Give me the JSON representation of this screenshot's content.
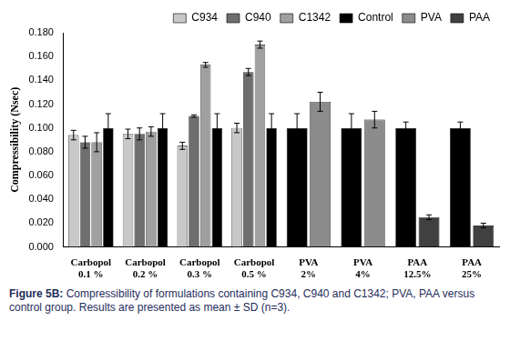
{
  "chart_data": {
    "type": "bar",
    "caption": "Figure 5B: Compressibility of formulations containing C934, C940 and C1342; PVA, PAA versus control group. Results are presented as mean ± SD (n=3).",
    "y_label": "Compressibility (Nsec)",
    "categories": [
      "Carbopol 0.1 %",
      "Carbopol 0.2 %",
      "Carbopol 0.3 %",
      "Carbopol 0.5 %",
      "PVA 2%",
      "PVA 4%",
      "PAA 12.5%",
      "PAA 25%"
    ],
    "series": [
      {
        "name": "C934",
        "color": "#c8c8c8",
        "values": [
          0.094,
          0.095,
          0.085,
          0.1,
          null,
          null,
          null,
          null
        ],
        "errors": [
          0.004,
          0.004,
          0.003,
          0.004,
          null,
          null,
          null,
          null
        ]
      },
      {
        "name": "C940",
        "color": "#6e6e6e",
        "values": [
          0.088,
          0.095,
          0.11,
          0.147,
          null,
          null,
          null,
          null
        ],
        "errors": [
          0.005,
          0.005,
          0.001,
          0.003,
          null,
          null,
          null,
          null
        ]
      },
      {
        "name": "C1342",
        "color": "#a0a0a0",
        "values": [
          0.088,
          0.097,
          0.153,
          0.17,
          null,
          null,
          null,
          null
        ],
        "errors": [
          0.008,
          0.004,
          0.002,
          0.003,
          null,
          null,
          null,
          null
        ]
      },
      {
        "name": "Control",
        "color": "#000000",
        "values": [
          0.1,
          0.1,
          0.1,
          0.1,
          0.1,
          0.1,
          0.1,
          0.1
        ],
        "errors": [
          0.012,
          0.012,
          0.012,
          0.012,
          0.012,
          0.012,
          0.005,
          0.005
        ]
      },
      {
        "name": "PVA",
        "color": "#8c8c8c",
        "values": [
          null,
          null,
          null,
          null,
          0.122,
          0.107,
          null,
          null
        ],
        "errors": [
          null,
          null,
          null,
          null,
          0.008,
          0.007,
          null,
          null
        ]
      },
      {
        "name": "PAA",
        "color": "#404040",
        "values": [
          null,
          null,
          null,
          null,
          null,
          null,
          0.025,
          0.018
        ],
        "errors": [
          null,
          null,
          null,
          null,
          null,
          null,
          0.002,
          0.002
        ]
      }
    ],
    "ylim": [
      0,
      0.18
    ],
    "yticks": [
      {
        "value": 0,
        "label": "0.000"
      },
      {
        "value": 0.02,
        "label": "0.020"
      },
      {
        "value": 0.04,
        "label": "0.040"
      },
      {
        "value": 0.06,
        "label": "0.060"
      },
      {
        "value": 0.08,
        "label": "0.080"
      },
      {
        "value": 0.1,
        "label": "0.100"
      },
      {
        "value": 0.12,
        "label": "0.120"
      },
      {
        "value": 0.14,
        "label": "0.140"
      },
      {
        "value": 0.16,
        "label": "0.160"
      },
      {
        "value": 0.18,
        "label": "0.180"
      }
    ],
    "grid": false,
    "legend": "top-right"
  }
}
